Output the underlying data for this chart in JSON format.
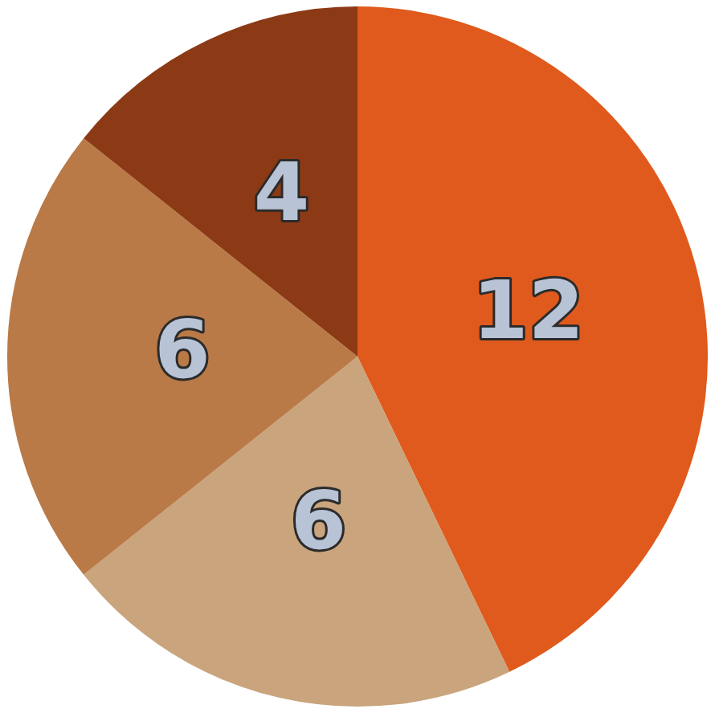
{
  "chart_data": {
    "type": "pie",
    "categories": [
      null,
      null,
      null,
      null
    ],
    "values": [
      12,
      6,
      6,
      4
    ],
    "colors": [
      "#df5a1c",
      "#c9a47c",
      "#b97a47",
      "#8c3a15"
    ],
    "data_labels": true,
    "legend": false
  }
}
